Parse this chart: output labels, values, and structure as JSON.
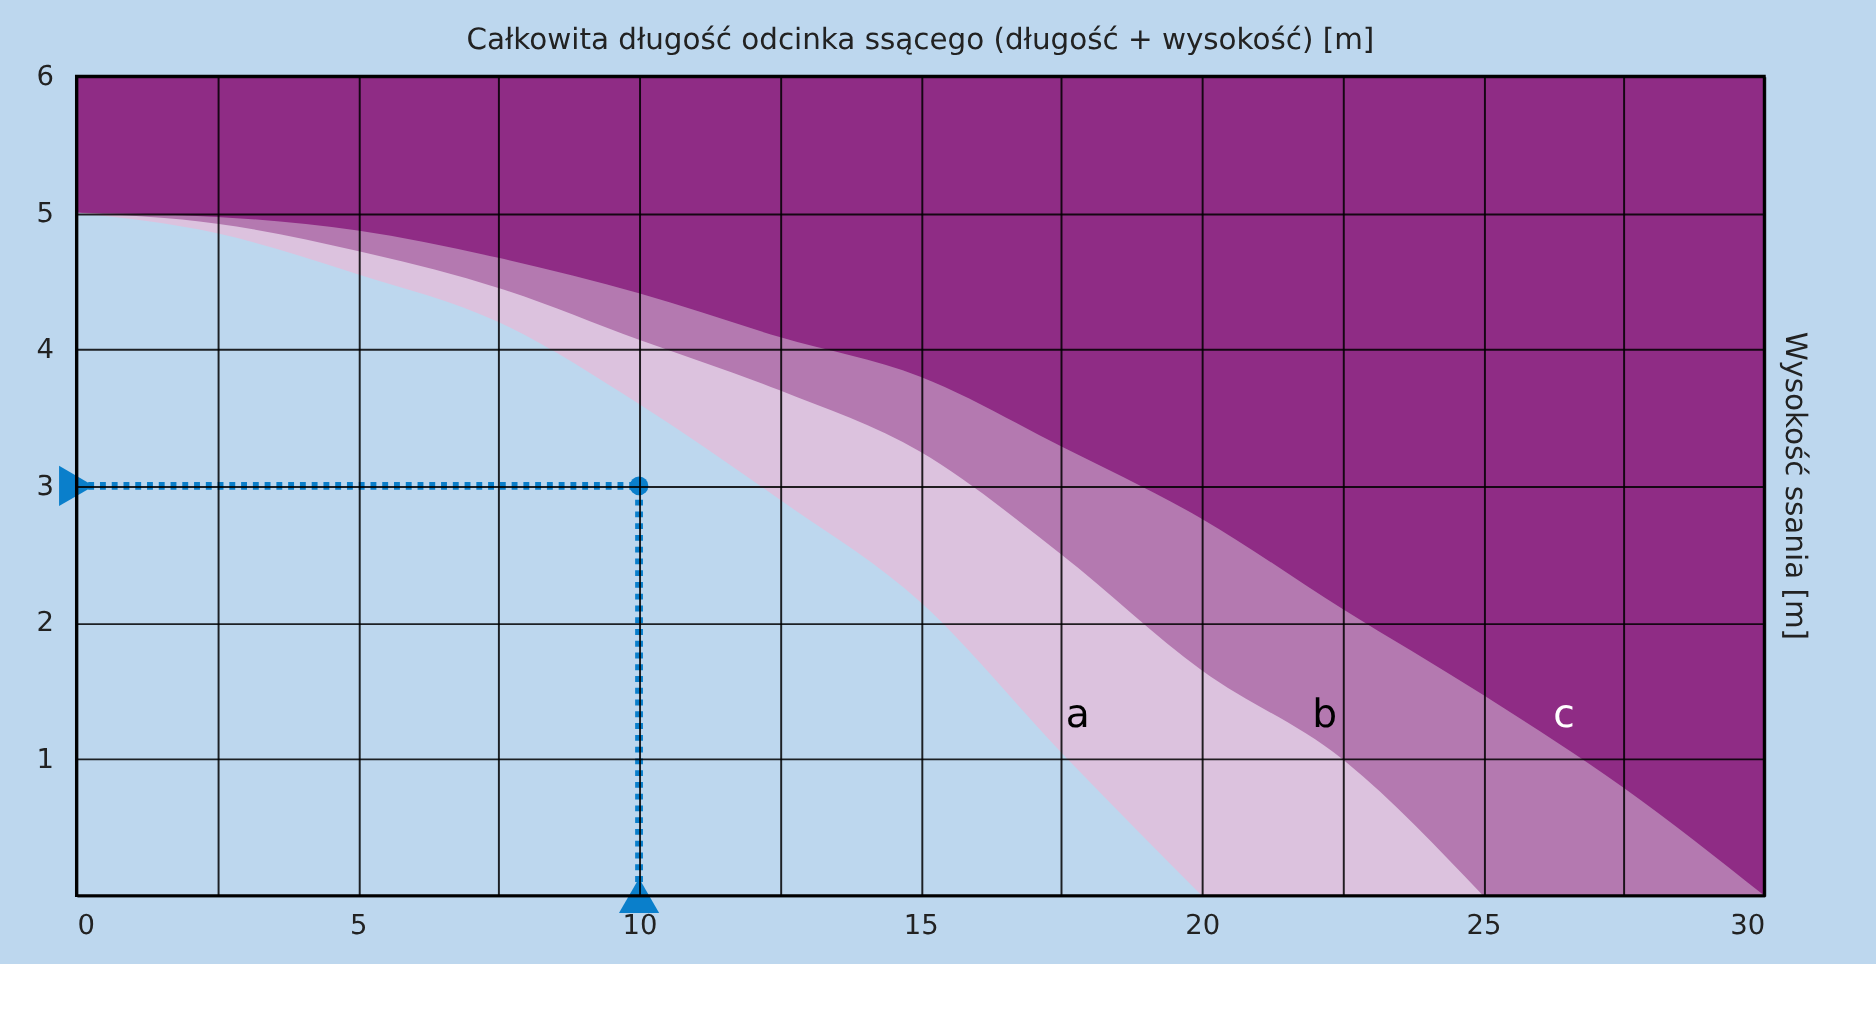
{
  "chart_data": {
    "type": "area",
    "xlabel": "Całkowita długość odcinka ssącego (długość + wysokość) [m]",
    "ylabel": "Wysokość ssania [m]",
    "x": [
      0,
      2.5,
      5,
      7.5,
      10,
      12.5,
      15,
      17.5,
      20,
      22.5,
      25,
      27.5,
      30
    ],
    "series": [
      {
        "name": "c",
        "color": "#b479b0",
        "values": [
          5,
          4.97,
          4.87,
          4.67,
          4.41,
          4.09,
          3.8,
          3.29,
          2.76,
          2.1,
          1.47,
          0.79,
          0
        ]
      },
      {
        "name": "b",
        "color": "#dcc2de",
        "x": [
          0,
          2.5,
          5,
          7.5,
          10,
          12.5,
          15,
          17.5,
          20,
          22.5,
          25
        ],
        "values": [
          5,
          4.92,
          4.72,
          4.45,
          4.07,
          3.7,
          3.25,
          2.5,
          1.65,
          1,
          0
        ]
      },
      {
        "name": "a",
        "color": "#bdd7ee",
        "x": [
          0,
          2.5,
          5,
          7.5,
          10,
          12.5,
          15,
          17.5,
          20
        ],
        "values": [
          5,
          4.85,
          4.55,
          4.2,
          3.6,
          2.9,
          2.15,
          1.05,
          0
        ]
      },
      {
        "type": "line",
        "color": "#0a7fcb",
        "line_style": "dotted",
        "marker": "none",
        "x": [
          0,
          10,
          10
        ],
        "values": [
          3,
          3,
          0
        ]
      },
      {
        "type": "scatter",
        "color": "#0a7fcb",
        "marker": "triangle",
        "x": [
          0,
          10
        ],
        "values": [
          3,
          0
        ]
      },
      {
        "type": "scatter",
        "color": "#0a7fcb",
        "marker": "circle",
        "x": [
          10
        ],
        "values": [
          3
        ]
      }
    ],
    "xlim": [
      0,
      30
    ],
    "ylim": [
      0,
      6
    ],
    "xticks": [
      0,
      {
        "value": 2.5,
        "label": null
      },
      5,
      {
        "value": 7.5,
        "label": null
      },
      10,
      {
        "value": 12.5,
        "label": null
      },
      15,
      {
        "value": 17.5,
        "label": null
      },
      20,
      {
        "value": 22.5,
        "label": null
      },
      25,
      {
        "value": 27.5,
        "label": null
      },
      30
    ],
    "yticks": [
      {
        "value": 0,
        "label": null
      },
      1,
      2,
      3,
      4,
      5,
      6
    ],
    "grid": true
  }
}
